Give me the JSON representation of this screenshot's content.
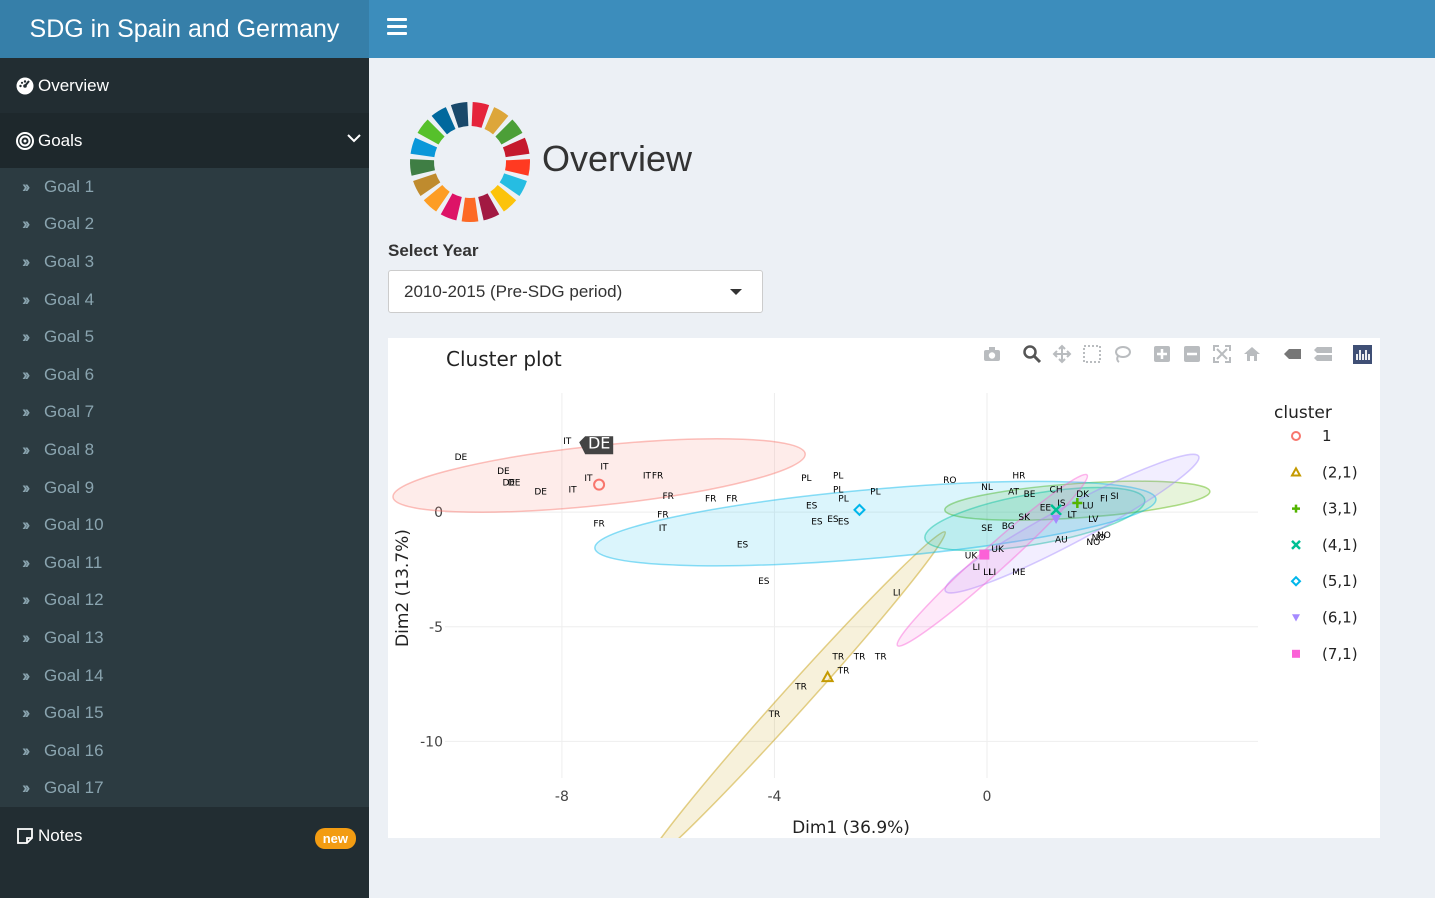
{
  "app": {
    "title": "SDG in Spain and Germany"
  },
  "sidebar": {
    "overview": "Overview",
    "goals": "Goals",
    "goal_items": [
      "Goal 1",
      "Goal 2",
      "Goal 3",
      "Goal 4",
      "Goal 5",
      "Goal 6",
      "Goal 7",
      "Goal 8",
      "Goal 9",
      "Goal 10",
      "Goal 11",
      "Goal 12",
      "Goal 13",
      "Goal 14",
      "Goal 15",
      "Goal 16",
      "Goal 17"
    ],
    "notes": "Notes",
    "notes_badge": "new"
  },
  "main": {
    "title": "Overview",
    "year_label": "Select Year",
    "year_value": "2010-2015 (Pre-SDG period)"
  },
  "sdg_colors": [
    "#e5243b",
    "#dda63a",
    "#4c9f38",
    "#c5192d",
    "#ff3a21",
    "#26bde2",
    "#fcc30b",
    "#a21942",
    "#fd6925",
    "#dd1367",
    "#fd9d24",
    "#bf8b2e",
    "#3f7e44",
    "#0a97d9",
    "#56c02b",
    "#00689d",
    "#19486a"
  ],
  "chart_data": {
    "type": "scatter",
    "title": "Cluster plot",
    "xlabel": "Dim1 (36.9%)",
    "ylabel": "Dim2 (13.7%)",
    "xlim": [
      -10.2,
      5.1
    ],
    "ylim": [
      -11.6,
      5.2
    ],
    "xticks": [
      -8,
      -4,
      0
    ],
    "xtick_labels": [
      "-8",
      "-4",
      "0"
    ],
    "yticks": [
      0,
      -5,
      -10
    ],
    "ytick_labels": [
      "0",
      "-5",
      "-10"
    ],
    "legend_title": "cluster",
    "tooltip": {
      "label": "DE",
      "x": -7.75,
      "y": 3.05
    },
    "series": [
      {
        "name": "1",
        "color": "#f8766d",
        "marker": "circle-open",
        "centroid": [
          -7.3,
          1.2
        ],
        "ellipse": {
          "cx": -7.3,
          "cy": 1.6,
          "rx": 3.9,
          "ry": 1.3,
          "angle": -6
        },
        "points": [
          [
            "DE",
            -9.9,
            2.4
          ],
          [
            "DE",
            -9.1,
            1.8
          ],
          [
            "DE",
            -9.0,
            1.3
          ],
          [
            "DE",
            -8.9,
            1.3
          ],
          [
            "DE",
            -8.4,
            0.9
          ],
          [
            "IT",
            -7.9,
            3.1
          ],
          [
            "IT",
            -7.8,
            1.0
          ],
          [
            "IT",
            -7.5,
            1.5
          ],
          [
            "IT",
            -7.2,
            2.0
          ],
          [
            "IT",
            -6.4,
            1.6
          ],
          [
            "IT",
            -6.1,
            -0.7
          ],
          [
            "FR",
            -6.2,
            1.6
          ],
          [
            "FR",
            -6.0,
            0.7
          ],
          [
            "FR",
            -6.1,
            -0.1
          ],
          [
            "FR",
            -5.2,
            0.6
          ],
          [
            "FR",
            -4.8,
            0.6
          ],
          [
            "FR",
            -7.3,
            -0.5
          ]
        ]
      },
      {
        "name": "(2,1)",
        "color": "#c49a00",
        "marker": "triangle-open",
        "centroid": [
          -3.0,
          -7.2
        ],
        "ellipse": {
          "cx": -3.6,
          "cy": -8.1,
          "rx": 4.2,
          "ry": 0.55,
          "angle": -48
        },
        "points": [
          [
            "TR",
            -2.8,
            -6.3
          ],
          [
            "TR",
            -2.4,
            -6.3
          ],
          [
            "TR",
            -2.0,
            -6.3
          ],
          [
            "TR",
            -2.7,
            -6.9
          ],
          [
            "TR",
            -3.5,
            -7.6
          ],
          [
            "TR",
            -4.0,
            -8.8
          ]
        ]
      },
      {
        "name": "(3,1)",
        "color": "#53b400",
        "marker": "cross",
        "centroid": [
          1.7,
          0.4
        ],
        "ellipse": {
          "cx": 1.7,
          "cy": 0.5,
          "rx": 2.5,
          "ry": 0.75,
          "angle": -4
        },
        "points": [
          [
            "AT",
            0.5,
            0.9
          ],
          [
            "BE",
            0.8,
            0.8
          ],
          [
            "CH",
            1.3,
            1.0
          ],
          [
            "DK",
            1.8,
            0.8
          ],
          [
            "FI",
            2.2,
            0.6
          ],
          [
            "IS",
            1.4,
            0.4
          ],
          [
            "LU",
            1.9,
            0.3
          ],
          [
            "SI",
            2.4,
            0.7
          ]
        ]
      },
      {
        "name": "(4,1)",
        "color": "#00c094",
        "marker": "x",
        "centroid": [
          1.3,
          0.1
        ],
        "ellipse": {
          "cx": 0.9,
          "cy": -0.3,
          "rx": 2.1,
          "ry": 1.1,
          "angle": -10
        },
        "points": [
          [
            "SE",
            0.0,
            -0.7
          ],
          [
            "BG",
            0.4,
            -0.6
          ],
          [
            "SK",
            0.7,
            -0.2
          ],
          [
            "EE",
            1.1,
            0.2
          ],
          [
            "LT",
            1.6,
            -0.1
          ],
          [
            "LV",
            2.0,
            -0.3
          ]
        ]
      },
      {
        "name": "(5,1)",
        "color": "#00b6eb",
        "marker": "diamond-open",
        "centroid": [
          -2.4,
          0.1
        ],
        "ellipse": {
          "cx": -2.1,
          "cy": -0.5,
          "rx": 5.3,
          "ry": 1.5,
          "angle": -5
        },
        "points": [
          [
            "PL",
            -3.4,
            1.5
          ],
          [
            "PL",
            -2.8,
            1.6
          ],
          [
            "PL",
            -2.8,
            1.0
          ],
          [
            "PL",
            -2.7,
            0.6
          ],
          [
            "PL",
            -2.1,
            0.9
          ],
          [
            "ES",
            -3.3,
            0.3
          ],
          [
            "ES",
            -3.2,
            -0.4
          ],
          [
            "ES",
            -2.9,
            -0.3
          ],
          [
            "ES",
            -2.7,
            -0.4
          ],
          [
            "ES",
            -4.6,
            -1.4
          ],
          [
            "ES",
            -4.2,
            -3.0
          ]
        ]
      },
      {
        "name": "(6,1)",
        "color": "#a58aff",
        "marker": "triangle-down",
        "centroid": [
          1.3,
          -0.3
        ],
        "ellipse": {
          "cx": 1.6,
          "cy": -0.5,
          "rx": 2.7,
          "ry": 0.8,
          "angle": -28
        },
        "points": [
          [
            "NO",
            2.0,
            -1.3
          ],
          [
            "NO",
            2.2,
            -1.0
          ],
          [
            "NO",
            2.1,
            -1.1
          ],
          [
            "AU",
            1.4,
            -1.2
          ],
          [
            "RO",
            -0.7,
            1.4
          ],
          [
            "HR",
            0.6,
            1.6
          ],
          [
            "NL",
            0.0,
            1.1
          ]
        ]
      },
      {
        "name": "(7,1)",
        "color": "#fb61d7",
        "marker": "square",
        "centroid": [
          -0.05,
          -1.85
        ],
        "ellipse": {
          "cx": 0.1,
          "cy": -2.1,
          "rx": 2.4,
          "ry": 0.55,
          "angle": -42
        },
        "points": [
          [
            "LI",
            -1.7,
            -3.5
          ],
          [
            "UK",
            -0.3,
            -1.9
          ],
          [
            "UK",
            0.2,
            -1.6
          ],
          [
            "LI",
            -0.2,
            -2.4
          ],
          [
            "LI",
            0.0,
            -2.6
          ],
          [
            "LI",
            0.1,
            -2.6
          ],
          [
            "ME",
            0.6,
            -2.6
          ]
        ]
      }
    ]
  }
}
